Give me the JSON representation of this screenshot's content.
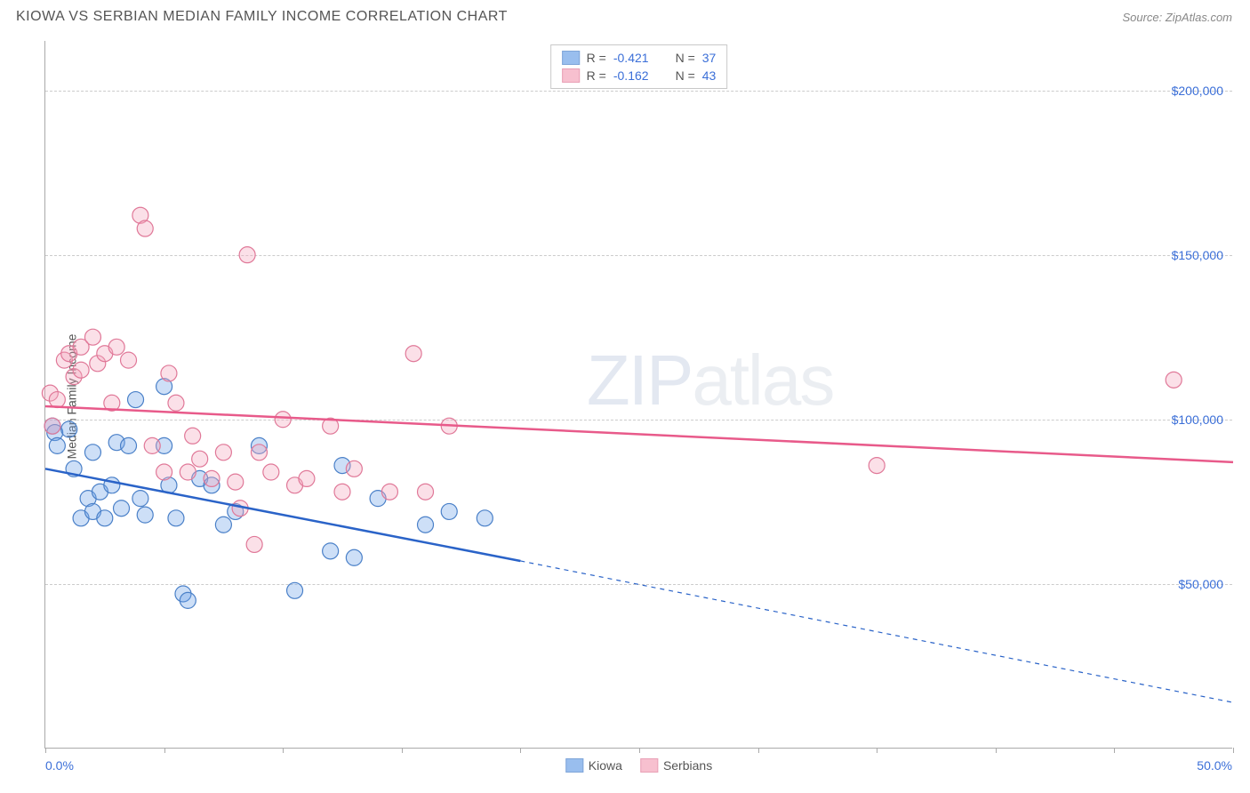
{
  "title": "KIOWA VS SERBIAN MEDIAN FAMILY INCOME CORRELATION CHART",
  "source": "Source: ZipAtlas.com",
  "watermark_zip": "ZIP",
  "watermark_atlas": "atlas",
  "ylabel": "Median Family Income",
  "chart": {
    "type": "scatter",
    "xlim": [
      0,
      50
    ],
    "ylim": [
      0,
      215000
    ],
    "x_ticks": [
      0,
      5,
      10,
      15,
      20,
      25,
      30,
      35,
      40,
      45,
      50
    ],
    "x_left_label": "0.0%",
    "x_right_label": "50.0%",
    "y_gridlines": [
      50000,
      100000,
      150000,
      200000
    ],
    "y_tick_labels": [
      "$50,000",
      "$100,000",
      "$150,000",
      "$200,000"
    ],
    "grid_color": "#cccccc",
    "axis_color": "#aaaaaa",
    "background_color": "#ffffff",
    "tick_label_color": "#3b6fd8",
    "axis_label_color": "#555555",
    "marker_radius": 9,
    "marker_stroke_width": 1.2,
    "marker_fill_opacity": 0.35
  },
  "series": [
    {
      "name": "Kiowa",
      "color": "#6fa3e8",
      "stroke": "#4a80c8",
      "line_color": "#2a63c8",
      "line_width": 2.5,
      "R": "-0.421",
      "N": "37",
      "trend": {
        "x1": 0,
        "y1": 85000,
        "x2": 20,
        "y2": 57000,
        "x2_dash": 50,
        "y2_dash": 14000
      },
      "points": [
        [
          0.3,
          98000
        ],
        [
          0.4,
          96000
        ],
        [
          0.5,
          92000
        ],
        [
          1.0,
          97000
        ],
        [
          1.2,
          85000
        ],
        [
          1.5,
          70000
        ],
        [
          1.8,
          76000
        ],
        [
          2.0,
          72000
        ],
        [
          2.0,
          90000
        ],
        [
          2.3,
          78000
        ],
        [
          2.5,
          70000
        ],
        [
          2.8,
          80000
        ],
        [
          3.0,
          93000
        ],
        [
          3.2,
          73000
        ],
        [
          3.5,
          92000
        ],
        [
          3.8,
          106000
        ],
        [
          4.0,
          76000
        ],
        [
          4.2,
          71000
        ],
        [
          5.0,
          92000
        ],
        [
          5.2,
          80000
        ],
        [
          5.5,
          70000
        ],
        [
          5.8,
          47000
        ],
        [
          6.0,
          45000
        ],
        [
          6.5,
          82000
        ],
        [
          7.0,
          80000
        ],
        [
          7.5,
          68000
        ],
        [
          8.0,
          72000
        ],
        [
          9.0,
          92000
        ],
        [
          10.5,
          48000
        ],
        [
          12.0,
          60000
        ],
        [
          12.5,
          86000
        ],
        [
          13.0,
          58000
        ],
        [
          14.0,
          76000
        ],
        [
          16.0,
          68000
        ],
        [
          17.0,
          72000
        ],
        [
          18.5,
          70000
        ],
        [
          5.0,
          110000
        ]
      ]
    },
    {
      "name": "Serbians",
      "color": "#f4a6bc",
      "stroke": "#e07898",
      "line_color": "#e85a8a",
      "line_width": 2.5,
      "R": "-0.162",
      "N": "43",
      "trend": {
        "x1": 0,
        "y1": 104000,
        "x2": 50,
        "y2": 87000
      },
      "points": [
        [
          0.2,
          108000
        ],
        [
          0.3,
          98000
        ],
        [
          0.8,
          118000
        ],
        [
          1.0,
          120000
        ],
        [
          1.2,
          113000
        ],
        [
          1.5,
          122000
        ],
        [
          1.5,
          115000
        ],
        [
          2.0,
          125000
        ],
        [
          2.2,
          117000
        ],
        [
          2.5,
          120000
        ],
        [
          2.8,
          105000
        ],
        [
          3.0,
          122000
        ],
        [
          3.5,
          118000
        ],
        [
          4.0,
          162000
        ],
        [
          4.2,
          158000
        ],
        [
          4.5,
          92000
        ],
        [
          5.0,
          84000
        ],
        [
          5.2,
          114000
        ],
        [
          5.5,
          105000
        ],
        [
          6.0,
          84000
        ],
        [
          6.2,
          95000
        ],
        [
          6.5,
          88000
        ],
        [
          7.0,
          82000
        ],
        [
          7.5,
          90000
        ],
        [
          8.0,
          81000
        ],
        [
          8.2,
          73000
        ],
        [
          8.5,
          150000
        ],
        [
          8.8,
          62000
        ],
        [
          9.0,
          90000
        ],
        [
          9.5,
          84000
        ],
        [
          10.0,
          100000
        ],
        [
          10.5,
          80000
        ],
        [
          11.0,
          82000
        ],
        [
          12.0,
          98000
        ],
        [
          12.5,
          78000
        ],
        [
          13.0,
          85000
        ],
        [
          14.5,
          78000
        ],
        [
          15.5,
          120000
        ],
        [
          16.0,
          78000
        ],
        [
          17.0,
          98000
        ],
        [
          35.0,
          86000
        ],
        [
          47.5,
          112000
        ],
        [
          0.5,
          106000
        ]
      ]
    }
  ],
  "legend": {
    "items": [
      {
        "label": "Kiowa",
        "color": "#6fa3e8",
        "stroke": "#4a80c8"
      },
      {
        "label": "Serbians",
        "color": "#f4a6bc",
        "stroke": "#e07898"
      }
    ]
  }
}
